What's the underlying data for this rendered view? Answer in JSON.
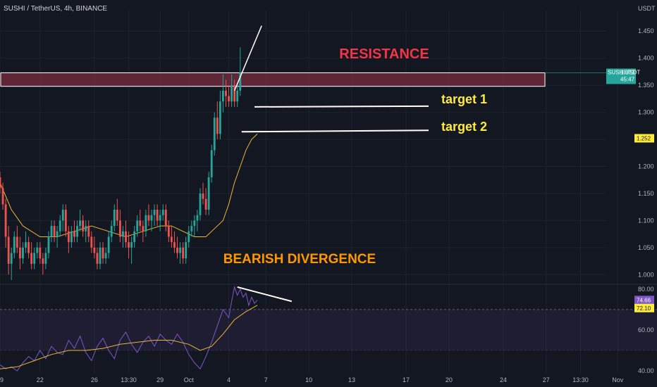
{
  "header": {
    "symbol_title": "SUSHI / TetherUS, 4h, BINANCE"
  },
  "annotations": {
    "resistance": "RESISTANCE",
    "target1": "target 1",
    "target2": "target 2",
    "divergence": "BEARISH DIVERGENCE"
  },
  "colors": {
    "background": "#131722",
    "up": "#26a69a",
    "down": "#ef5350",
    "ma": "#e8b930",
    "rsi": "#7e57c2",
    "resistance_fill": "#6b2a3c",
    "text": "#b2b5be",
    "annotation_red": "#f23645",
    "annotation_yellow": "#ffeb3b",
    "annotation_orange": "#ff9800"
  },
  "chart_data": [
    {
      "type": "candlestick",
      "y_axis_label": "USDT",
      "y_ticks": [
        "1.450",
        "1.400",
        "1.350",
        "1.300",
        "1.250",
        "1.200",
        "1.150",
        "1.100",
        "1.050",
        "1.000"
      ],
      "ylim": [
        0.99,
        1.475
      ],
      "x_ticks": [
        "19",
        "22",
        "26",
        "13:30",
        "29",
        "Oct",
        "4",
        "7",
        "10",
        "13",
        "17",
        "20",
        "24",
        "27",
        "13:30",
        "Nov"
      ],
      "x_domain": [
        0,
        212
      ],
      "tick_positions": [
        0,
        14,
        33,
        45,
        56,
        66,
        80,
        93,
        108,
        123,
        142,
        157,
        176,
        191,
        203,
        216
      ],
      "candles": [
        [
          1.18,
          1.19,
          1.15,
          1.16
        ],
        [
          1.16,
          1.17,
          1.12,
          1.13
        ],
        [
          1.13,
          1.14,
          1.05,
          1.07
        ],
        [
          1.07,
          1.09,
          1.0,
          1.02
        ],
        [
          1.02,
          1.05,
          0.99,
          1.04
        ],
        [
          1.04,
          1.08,
          1.03,
          1.07
        ],
        [
          1.07,
          1.09,
          1.04,
          1.05
        ],
        [
          1.05,
          1.07,
          1.01,
          1.03
        ],
        [
          1.03,
          1.06,
          1.02,
          1.05
        ],
        [
          1.05,
          1.08,
          1.04,
          1.06
        ],
        [
          1.06,
          1.07,
          1.03,
          1.04
        ],
        [
          1.04,
          1.06,
          1.01,
          1.02
        ],
        [
          1.02,
          1.05,
          1.01,
          1.04
        ],
        [
          1.04,
          1.06,
          1.03,
          1.05
        ],
        [
          1.05,
          1.06,
          1.02,
          1.03
        ],
        [
          1.03,
          1.04,
          1.0,
          1.02
        ],
        [
          1.02,
          1.05,
          1.01,
          1.04
        ],
        [
          1.04,
          1.08,
          1.03,
          1.07
        ],
        [
          1.07,
          1.1,
          1.06,
          1.09
        ],
        [
          1.09,
          1.1,
          1.06,
          1.07
        ],
        [
          1.07,
          1.09,
          1.05,
          1.08
        ],
        [
          1.08,
          1.11,
          1.07,
          1.1
        ],
        [
          1.1,
          1.13,
          1.08,
          1.12
        ],
        [
          1.12,
          1.13,
          1.07,
          1.08
        ],
        [
          1.08,
          1.09,
          1.04,
          1.06
        ],
        [
          1.06,
          1.09,
          1.05,
          1.08
        ],
        [
          1.08,
          1.1,
          1.06,
          1.07
        ],
        [
          1.07,
          1.1,
          1.06,
          1.09
        ],
        [
          1.09,
          1.12,
          1.08,
          1.1
        ],
        [
          1.1,
          1.11,
          1.07,
          1.08
        ],
        [
          1.08,
          1.1,
          1.06,
          1.09
        ],
        [
          1.09,
          1.1,
          1.06,
          1.07
        ],
        [
          1.07,
          1.08,
          1.04,
          1.05
        ],
        [
          1.05,
          1.07,
          1.03,
          1.04
        ],
        [
          1.04,
          1.05,
          1.01,
          1.02
        ],
        [
          1.02,
          1.06,
          1.01,
          1.05
        ],
        [
          1.05,
          1.06,
          1.02,
          1.03
        ],
        [
          1.03,
          1.05,
          1.02,
          1.04
        ],
        [
          1.04,
          1.08,
          1.03,
          1.07
        ],
        [
          1.07,
          1.1,
          1.06,
          1.09
        ],
        [
          1.09,
          1.13,
          1.08,
          1.12
        ],
        [
          1.12,
          1.14,
          1.09,
          1.1
        ],
        [
          1.1,
          1.12,
          1.06,
          1.07
        ],
        [
          1.07,
          1.09,
          1.05,
          1.08
        ],
        [
          1.08,
          1.1,
          1.05,
          1.06
        ],
        [
          1.06,
          1.08,
          1.03,
          1.05
        ],
        [
          1.05,
          1.07,
          1.02,
          1.06
        ],
        [
          1.06,
          1.09,
          1.05,
          1.08
        ],
        [
          1.08,
          1.11,
          1.07,
          1.1
        ],
        [
          1.1,
          1.12,
          1.08,
          1.09
        ],
        [
          1.09,
          1.1,
          1.06,
          1.08
        ],
        [
          1.08,
          1.12,
          1.07,
          1.11
        ],
        [
          1.11,
          1.13,
          1.09,
          1.1
        ],
        [
          1.1,
          1.12,
          1.08,
          1.11
        ],
        [
          1.11,
          1.13,
          1.09,
          1.12
        ],
        [
          1.12,
          1.13,
          1.09,
          1.1
        ],
        [
          1.1,
          1.12,
          1.08,
          1.11
        ],
        [
          1.11,
          1.13,
          1.1,
          1.12
        ],
        [
          1.12,
          1.13,
          1.08,
          1.09
        ],
        [
          1.09,
          1.1,
          1.06,
          1.07
        ],
        [
          1.07,
          1.09,
          1.05,
          1.06
        ],
        [
          1.06,
          1.08,
          1.04,
          1.05
        ],
        [
          1.05,
          1.07,
          1.03,
          1.04
        ],
        [
          1.04,
          1.06,
          1.02,
          1.05
        ],
        [
          1.05,
          1.06,
          1.02,
          1.03
        ],
        [
          1.03,
          1.07,
          1.02,
          1.06
        ],
        [
          1.06,
          1.09,
          1.05,
          1.08
        ],
        [
          1.08,
          1.1,
          1.07,
          1.09
        ],
        [
          1.09,
          1.11,
          1.07,
          1.1
        ],
        [
          1.1,
          1.12,
          1.08,
          1.11
        ],
        [
          1.11,
          1.16,
          1.1,
          1.15
        ],
        [
          1.15,
          1.17,
          1.13,
          1.14
        ],
        [
          1.14,
          1.16,
          1.11,
          1.12
        ],
        [
          1.12,
          1.19,
          1.11,
          1.18
        ],
        [
          1.18,
          1.24,
          1.17,
          1.23
        ],
        [
          1.23,
          1.3,
          1.22,
          1.29
        ],
        [
          1.29,
          1.32,
          1.25,
          1.26
        ],
        [
          1.26,
          1.34,
          1.25,
          1.32
        ],
        [
          1.32,
          1.37,
          1.3,
          1.34
        ],
        [
          1.34,
          1.36,
          1.31,
          1.33
        ],
        [
          1.33,
          1.35,
          1.31,
          1.32
        ],
        [
          1.32,
          1.37,
          1.31,
          1.35
        ],
        [
          1.35,
          1.36,
          1.31,
          1.32
        ],
        [
          1.32,
          1.35,
          1.31,
          1.34
        ],
        [
          1.34,
          1.42,
          1.33,
          1.373
        ]
      ],
      "ma": [
        [
          0,
          1.17
        ],
        [
          4,
          1.12
        ],
        [
          8,
          1.09
        ],
        [
          14,
          1.07
        ],
        [
          20,
          1.07
        ],
        [
          26,
          1.08
        ],
        [
          32,
          1.09
        ],
        [
          38,
          1.08
        ],
        [
          44,
          1.07
        ],
        [
          50,
          1.08
        ],
        [
          56,
          1.09
        ],
        [
          60,
          1.09
        ],
        [
          64,
          1.08
        ],
        [
          68,
          1.07
        ],
        [
          72,
          1.07
        ],
        [
          74,
          1.08
        ],
        [
          78,
          1.1
        ],
        [
          80,
          1.13
        ],
        [
          82,
          1.17
        ],
        [
          84,
          1.2
        ],
        [
          86,
          1.23
        ],
        [
          88,
          1.25
        ],
        [
          90,
          1.26
        ]
      ],
      "last_price": {
        "label": "SUSHIUSDT",
        "value": "1.373",
        "timer": "45:47",
        "price": 1.373
      },
      "marker_price": {
        "value": "1.252",
        "price": 1.252
      },
      "resistance_zone": [
        1.348,
        1.373
      ],
      "target1_price": 1.31,
      "target2_price": 1.264
    },
    {
      "type": "line",
      "indicator": "RSI",
      "y_ticks": [
        "80.00",
        "60.00",
        "40.00"
      ],
      "ylim": [
        39,
        82
      ],
      "band": [
        50,
        70
      ],
      "rsi": [
        [
          0,
          43
        ],
        [
          2,
          41
        ],
        [
          4,
          42
        ],
        [
          6,
          40
        ],
        [
          8,
          44
        ],
        [
          10,
          47
        ],
        [
          12,
          45
        ],
        [
          14,
          50
        ],
        [
          16,
          46
        ],
        [
          18,
          52
        ],
        [
          20,
          49
        ],
        [
          22,
          48
        ],
        [
          24,
          55
        ],
        [
          26,
          51
        ],
        [
          28,
          57
        ],
        [
          30,
          49
        ],
        [
          32,
          45
        ],
        [
          34,
          52
        ],
        [
          36,
          56
        ],
        [
          38,
          50
        ],
        [
          40,
          46
        ],
        [
          42,
          55
        ],
        [
          44,
          59
        ],
        [
          46,
          53
        ],
        [
          48,
          49
        ],
        [
          50,
          54
        ],
        [
          52,
          57
        ],
        [
          54,
          52
        ],
        [
          56,
          58
        ],
        [
          58,
          55
        ],
        [
          60,
          53
        ],
        [
          62,
          58
        ],
        [
          64,
          54
        ],
        [
          66,
          48
        ],
        [
          68,
          44
        ],
        [
          70,
          41
        ],
        [
          72,
          47
        ],
        [
          74,
          54
        ],
        [
          76,
          62
        ],
        [
          78,
          70
        ],
        [
          80,
          66
        ],
        [
          81,
          74
        ],
        [
          82,
          81
        ],
        [
          83,
          77
        ],
        [
          84,
          80
        ],
        [
          85,
          76
        ],
        [
          86,
          78
        ],
        [
          87,
          72
        ],
        [
          88,
          76
        ],
        [
          89,
          73
        ],
        [
          90,
          74.66
        ]
      ],
      "rsi_ma": [
        [
          0,
          41
        ],
        [
          6,
          42
        ],
        [
          12,
          45
        ],
        [
          18,
          48
        ],
        [
          24,
          50
        ],
        [
          30,
          50
        ],
        [
          36,
          51
        ],
        [
          42,
          53
        ],
        [
          48,
          54
        ],
        [
          54,
          55
        ],
        [
          60,
          55
        ],
        [
          66,
          53
        ],
        [
          70,
          50
        ],
        [
          74,
          52
        ],
        [
          78,
          58
        ],
        [
          82,
          65
        ],
        [
          86,
          69
        ],
        [
          90,
          72.1
        ]
      ],
      "rsi_value": "74.66",
      "rsi_ma_value": "72.10",
      "rsi_value_num": 74.66,
      "rsi_ma_value_num": 72.1,
      "divergence_line": [
        [
          83,
          81
        ],
        [
          102,
          74
        ]
      ]
    }
  ]
}
